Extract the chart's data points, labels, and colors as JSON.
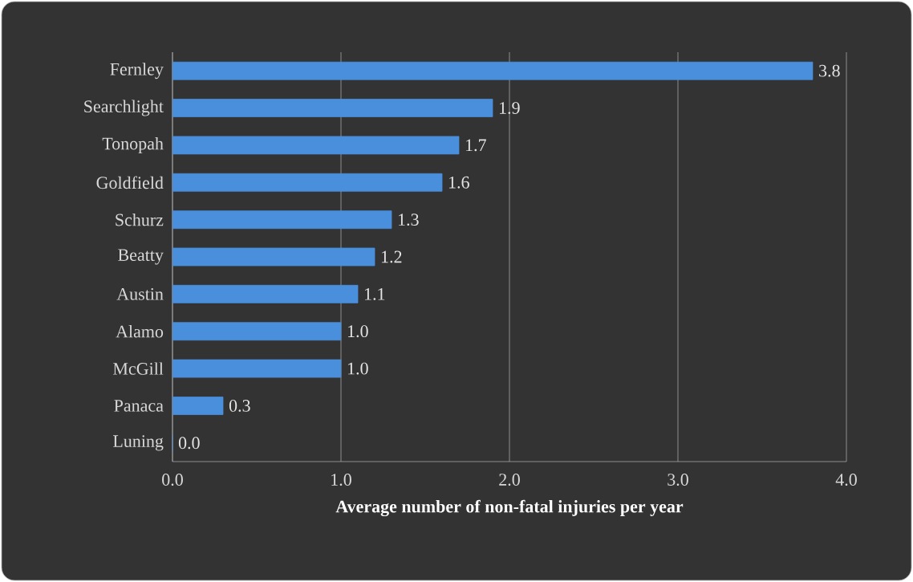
{
  "chart_data": {
    "type": "bar",
    "orientation": "horizontal",
    "xlabel": "Average number  of non-fatal injuries  per year",
    "categories": [
      "Fernley",
      "Searchlight",
      "Tonopah",
      "Goldfield",
      "Schurz",
      "Beatty",
      "Austin",
      "Alamo",
      "McGill",
      "Panaca",
      "Luning"
    ],
    "values": [
      3.8,
      1.9,
      1.7,
      1.6,
      1.3,
      1.2,
      1.1,
      1.0,
      1.0,
      0.3,
      0.0
    ],
    "value_labels": [
      "3.8",
      "1.9",
      "1.7",
      "1.6",
      "1.3",
      "1.2",
      "1.1",
      "1.0",
      "1.0",
      "0.3",
      "0.0"
    ],
    "color": "#4a8fdc",
    "grid": "x",
    "xlim": [
      0,
      4
    ],
    "xticks": [
      {
        "value": 0,
        "label": "0.0"
      },
      {
        "value": 1,
        "label": "1.0"
      },
      {
        "value": 2,
        "label": "2.0"
      },
      {
        "value": 3,
        "label": "3.0"
      },
      {
        "value": 4,
        "label": "4.0"
      }
    ]
  }
}
